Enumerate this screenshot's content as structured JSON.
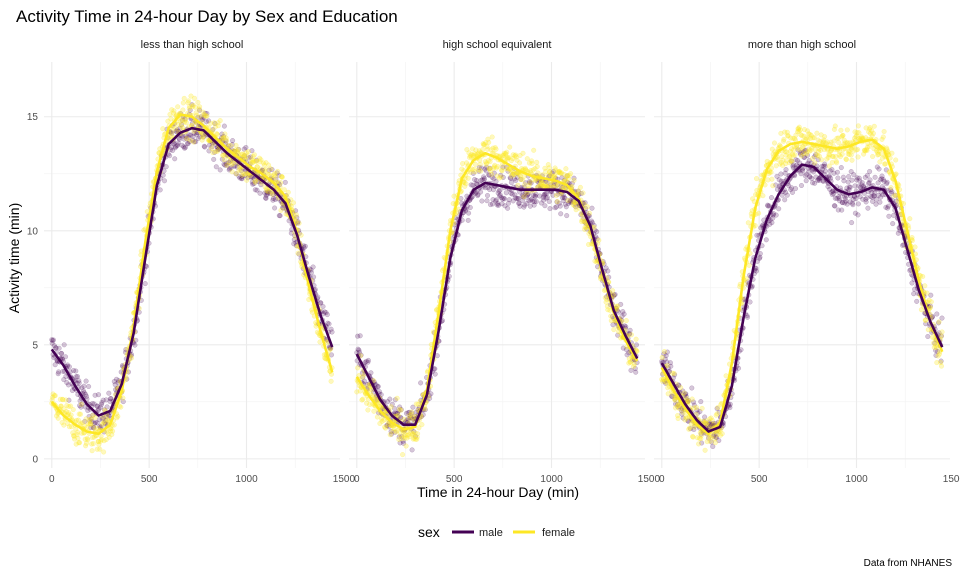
{
  "chart_data": {
    "type": "scatter",
    "title": "Activity Time in 24-hour Day by Sex and Education",
    "xlabel": "Time in 24-hour Day (min)",
    "ylabel": "Activity time (min)",
    "caption": "Data from NHANES",
    "xlim": [
      -40,
      1480
    ],
    "ylim": [
      -0.4,
      17.4
    ],
    "xticks": [
      0,
      500,
      1000,
      1500
    ],
    "yticks": [
      0,
      5,
      10,
      15
    ],
    "grid": true,
    "legend": {
      "title": "sex",
      "position": "bottom",
      "entries": [
        "male",
        "female"
      ]
    },
    "colors": {
      "male": "#440154",
      "female": "#FDE725"
    },
    "panels": [
      {
        "label": "less than high school",
        "series": [
          {
            "name": "male",
            "x": [
              0,
              60,
              120,
              180,
              240,
              300,
              360,
              420,
              480,
              540,
              600,
              660,
              720,
              780,
              840,
              900,
              960,
              1020,
              1080,
              1140,
              1200,
              1260,
              1320,
              1380,
              1440
            ],
            "values": [
              4.8,
              4.1,
              3.2,
              2.4,
              1.9,
              2.1,
              3.3,
              5.5,
              8.8,
              12.0,
              13.8,
              14.3,
              14.5,
              14.4,
              13.9,
              13.4,
              13.0,
              12.6,
              12.2,
              11.8,
              11.2,
              9.8,
              8.0,
              6.3,
              4.9
            ]
          },
          {
            "name": "female",
            "x": [
              0,
              60,
              120,
              180,
              240,
              300,
              360,
              420,
              480,
              540,
              600,
              660,
              720,
              780,
              840,
              900,
              960,
              1020,
              1080,
              1140,
              1200,
              1260,
              1320,
              1380,
              1440
            ],
            "values": [
              2.5,
              1.9,
              1.5,
              1.2,
              1.1,
              1.5,
              3.0,
              5.8,
              9.5,
              12.6,
              14.5,
              15.1,
              15.0,
              14.6,
              14.1,
              13.6,
              13.2,
              12.8,
              12.5,
              12.1,
              11.5,
              9.9,
              7.6,
              5.6,
              3.8
            ]
          }
        ]
      },
      {
        "label": "high school equivalent",
        "series": [
          {
            "name": "male",
            "x": [
              0,
              60,
              120,
              180,
              240,
              300,
              360,
              420,
              480,
              540,
              600,
              660,
              720,
              780,
              840,
              900,
              960,
              1020,
              1080,
              1140,
              1200,
              1260,
              1320,
              1380,
              1440
            ],
            "values": [
              4.6,
              3.6,
              2.6,
              1.9,
              1.5,
              1.5,
              2.8,
              5.6,
              8.8,
              10.9,
              11.8,
              12.1,
              12.0,
              11.9,
              11.8,
              11.8,
              11.8,
              11.8,
              11.7,
              11.3,
              10.2,
              8.3,
              6.5,
              5.4,
              4.4
            ]
          },
          {
            "name": "female",
            "x": [
              0,
              60,
              120,
              180,
              240,
              300,
              360,
              420,
              480,
              540,
              600,
              660,
              720,
              780,
              840,
              900,
              960,
              1020,
              1080,
              1140,
              1200,
              1260,
              1320,
              1380,
              1440
            ],
            "values": [
              3.6,
              2.8,
              2.1,
              1.6,
              1.3,
              1.4,
              3.0,
              6.4,
              10.0,
              12.3,
              13.1,
              13.4,
              13.2,
              12.9,
              12.6,
              12.4,
              12.3,
              12.2,
              12.0,
              11.4,
              10.1,
              8.2,
              6.4,
              5.2,
              4.3
            ]
          }
        ]
      },
      {
        "label": "more than high school",
        "series": [
          {
            "name": "male",
            "x": [
              0,
              60,
              120,
              180,
              240,
              300,
              360,
              420,
              480,
              540,
              600,
              660,
              720,
              780,
              840,
              900,
              960,
              1020,
              1080,
              1140,
              1200,
              1260,
              1320,
              1380,
              1440
            ],
            "values": [
              4.2,
              3.3,
              2.4,
              1.7,
              1.2,
              1.4,
              3.2,
              6.2,
              8.8,
              10.5,
              11.6,
              12.4,
              12.9,
              12.8,
              12.3,
              11.8,
              11.6,
              11.7,
              11.9,
              11.8,
              11.0,
              9.2,
              7.4,
              6.0,
              4.9
            ]
          },
          {
            "name": "female",
            "x": [
              0,
              60,
              120,
              180,
              240,
              300,
              360,
              420,
              480,
              540,
              600,
              660,
              720,
              780,
              840,
              900,
              960,
              1020,
              1080,
              1140,
              1200,
              1260,
              1320,
              1380,
              1440
            ],
            "values": [
              4.0,
              3.0,
              2.2,
              1.5,
              1.1,
              1.6,
              4.2,
              8.0,
              11.0,
              12.7,
              13.5,
              13.8,
              13.9,
              13.8,
              13.7,
              13.6,
              13.7,
              13.9,
              14.0,
              13.6,
              12.2,
              10.0,
              7.8,
              6.0,
              4.7
            ]
          }
        ]
      }
    ]
  }
}
